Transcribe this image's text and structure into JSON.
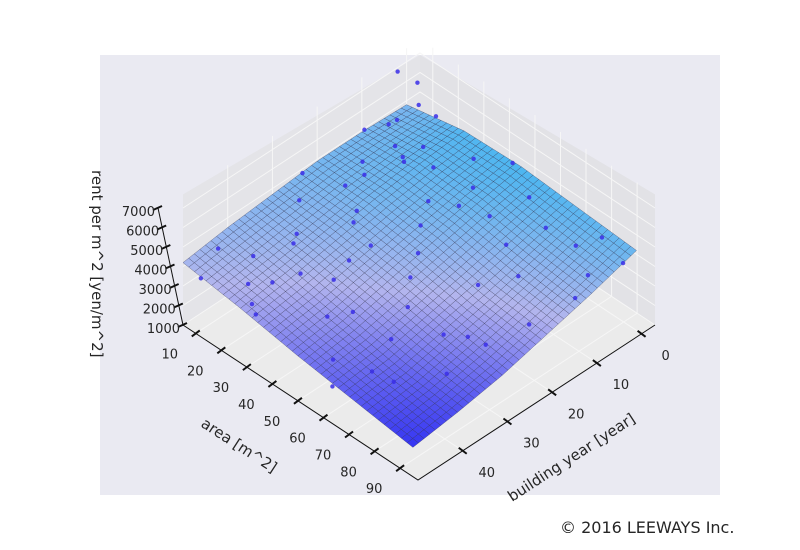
{
  "chart_data": {
    "type": "surface3d",
    "xlabel": "area [m^2]",
    "ylabel": "building year [year]",
    "zlabel": "rent per m^2 [yen/m^2]",
    "x_ticks": [
      10,
      20,
      30,
      40,
      50,
      60,
      70,
      80,
      90
    ],
    "y_ticks": [
      0,
      10,
      20,
      30,
      40
    ],
    "z_ticks": [
      1000,
      2000,
      3000,
      4000,
      5000,
      6000,
      7000
    ],
    "xlim": [
      5,
      97
    ],
    "ylim": [
      -3,
      50
    ],
    "zlim": [
      1000,
      7000
    ],
    "surface": {
      "area": [
        5,
        27.5,
        50,
        72.5,
        95
      ],
      "year": [
        0,
        10,
        20,
        30,
        40,
        50
      ],
      "rent": [
        [
          4800,
          5400,
          5500,
          5300,
          5100
        ],
        [
          4900,
          5200,
          5100,
          4700,
          4400
        ],
        [
          4900,
          4900,
          4600,
          4100,
          3800
        ],
        [
          4700,
          4500,
          4100,
          3600,
          3200
        ],
        [
          4500,
          4100,
          3600,
          3100,
          2800
        ],
        [
          4200,
          3800,
          3300,
          2900,
          2500
        ]
      ]
    },
    "scatter": [
      [
        10,
        5,
        5200
      ],
      [
        12,
        8,
        5600
      ],
      [
        15,
        3,
        6100
      ],
      [
        18,
        10,
        5300
      ],
      [
        20,
        2,
        5800
      ],
      [
        22,
        6,
        5000
      ],
      [
        25,
        12,
        5400
      ],
      [
        14,
        15,
        4900
      ],
      [
        16,
        20,
        4600
      ],
      [
        20,
        18,
        5200
      ],
      [
        24,
        22,
        4300
      ],
      [
        28,
        25,
        4500
      ],
      [
        12,
        28,
        4700
      ],
      [
        18,
        32,
        4100
      ],
      [
        22,
        35,
        4400
      ],
      [
        15,
        40,
        3900
      ],
      [
        10,
        45,
        4600
      ],
      [
        20,
        44,
        3500
      ],
      [
        26,
        42,
        3800
      ],
      [
        30,
        38,
        4000
      ],
      [
        35,
        30,
        3900
      ],
      [
        40,
        5,
        5800
      ],
      [
        45,
        8,
        5200
      ],
      [
        50,
        2,
        6000
      ],
      [
        38,
        14,
        4800
      ],
      [
        42,
        18,
        4500
      ],
      [
        48,
        22,
        4200
      ],
      [
        52,
        26,
        3900
      ],
      [
        36,
        34,
        3600
      ],
      [
        44,
        40,
        3300
      ],
      [
        55,
        10,
        4900
      ],
      [
        60,
        4,
        5400
      ],
      [
        65,
        12,
        4600
      ],
      [
        70,
        6,
        5000
      ],
      [
        58,
        30,
        3500
      ],
      [
        62,
        36,
        3100
      ],
      [
        68,
        20,
        4000
      ],
      [
        75,
        15,
        4300
      ],
      [
        80,
        5,
        4800
      ],
      [
        85,
        2,
        5200
      ],
      [
        90,
        8,
        4600
      ],
      [
        78,
        28,
        3400
      ],
      [
        82,
        35,
        2900
      ],
      [
        88,
        20,
        3700
      ],
      [
        92,
        12,
        4200
      ],
      [
        30,
        48,
        3400
      ],
      [
        12,
        50,
        4000
      ],
      [
        25,
        46,
        3200
      ],
      [
        8,
        25,
        5300
      ],
      [
        6,
        10,
        5100
      ],
      [
        33,
        10,
        5500
      ],
      [
        47,
        36,
        3200
      ],
      [
        55,
        45,
        2800
      ],
      [
        65,
        42,
        2600
      ],
      [
        72,
        30,
        3300
      ],
      [
        95,
        3,
        4900
      ],
      [
        18,
        5,
        7800
      ],
      [
        5,
        2,
        6800
      ],
      [
        60,
        48,
        2300
      ],
      [
        40,
        28,
        4800
      ],
      [
        28,
        14,
        6200
      ],
      [
        50,
        14,
        5600
      ],
      [
        70,
        40,
        2200
      ],
      [
        85,
        28,
        3600
      ]
    ],
    "surface_colors": {
      "low": "#3434f2",
      "mid": "#b3b5ee",
      "high": "#4cb6f0"
    },
    "point_color": "#3a2ee8",
    "pane_color": "#eaeaf2"
  },
  "copyright": "© 2016 LEEWAYS Inc."
}
